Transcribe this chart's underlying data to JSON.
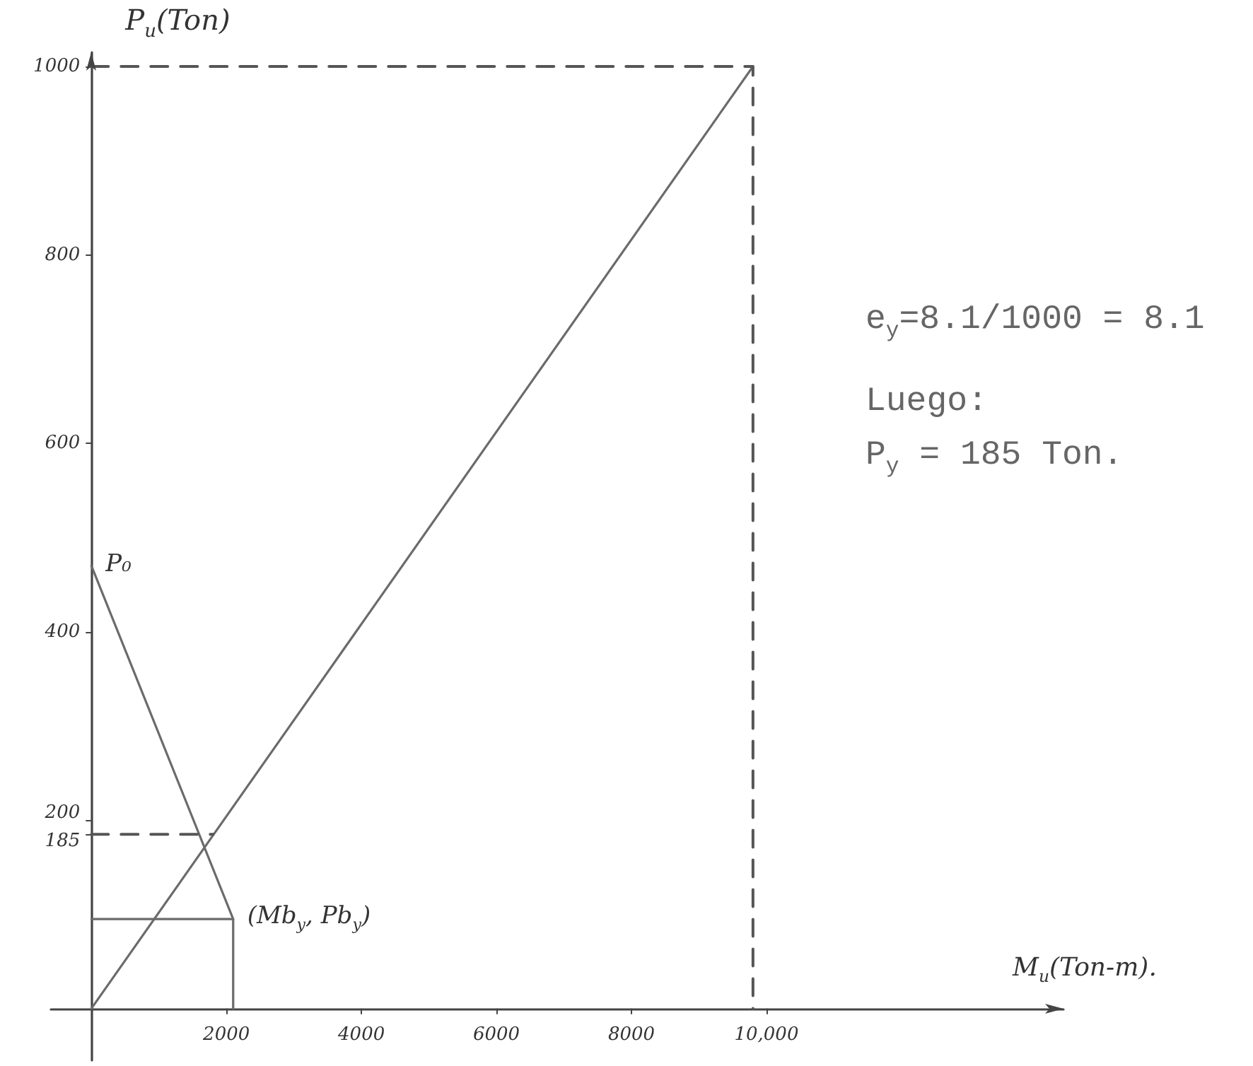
{
  "chart_data": {
    "type": "line",
    "xlabel": "M$_{u}$(Ton-m).",
    "ylabel": "P$_{u}$(Ton)",
    "xlim": [
      -600,
      14400
    ],
    "ylim": [
      -55,
      1015
    ],
    "xticks": [
      2000,
      4000,
      6000,
      8000,
      {
        "value": 10000,
        "label": "10,000"
      }
    ],
    "yticks": [
      185,
      200,
      400,
      600,
      800,
      1000
    ],
    "series": [
      {
        "color": "#6b6b6b",
        "x": [
          0,
          9800
        ],
        "values": [
          0,
          1000
        ]
      },
      {
        "color": "#6b6b6b",
        "x": [
          0,
          2100
        ],
        "values": [
          470,
          95
        ]
      },
      {
        "color": "#6b6b6b",
        "x": [
          0,
          2100,
          2100
        ],
        "values": [
          95,
          95,
          0
        ]
      },
      {
        "color": "#555555",
        "x": [
          0,
          1800
        ],
        "values": [
          185,
          185
        ],
        "line_style": "dashed"
      },
      {
        "color": "#555555",
        "x": [
          0,
          9800,
          9800
        ],
        "values": [
          1000,
          1000,
          0
        ],
        "line_style": "dashed"
      }
    ],
    "annotations": [
      {
        "text": "P₀",
        "x": 0,
        "y": 470
      },
      {
        "text": "(Mb$_{y}$, Pb$_{y}$)",
        "x": 2100,
        "y": 95
      },
      "e$_{y}$=8.1/1000 = 8.1",
      "Luego:",
      "P$_{y}$ = 185 Ton."
    ],
    "marker": "none",
    "line_style": "solid",
    "grid": false
  }
}
